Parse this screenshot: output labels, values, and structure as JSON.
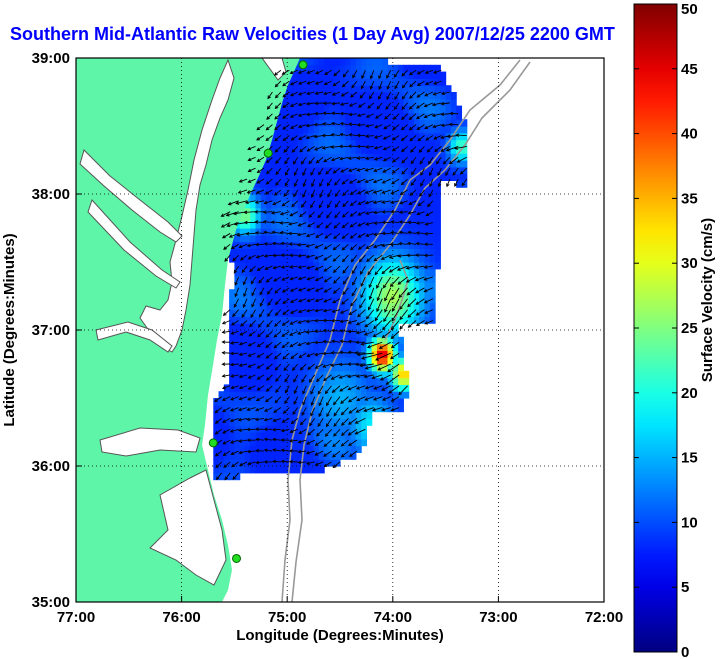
{
  "chart_data": {
    "type": "heatmap",
    "title": "Southern Mid-Atlantic Raw Velocities (1 Day Avg) 2007/12/25 2200 GMT",
    "xlabel": "Longitude (Degrees:Minutes)",
    "ylabel": "Latitude (Degrees:Minutes)",
    "xlim": [
      -77,
      -72
    ],
    "ylim": [
      35,
      39
    ],
    "x_ticks": [
      {
        "value": -77,
        "label": "77:00"
      },
      {
        "value": -76,
        "label": "76:00"
      },
      {
        "value": -75,
        "label": "75:00"
      },
      {
        "value": -74,
        "label": "74:00"
      },
      {
        "value": -73,
        "label": "73:00"
      },
      {
        "value": -72,
        "label": "72:00"
      }
    ],
    "y_ticks": [
      {
        "value": 35,
        "label": "35:00"
      },
      {
        "value": 36,
        "label": "36:00"
      },
      {
        "value": 37,
        "label": "37:00"
      },
      {
        "value": 38,
        "label": "38:00"
      },
      {
        "value": 39,
        "label": "39:00"
      }
    ],
    "grid": true,
    "grid_style": "dotted",
    "colorbar": {
      "label": "Surface Velocity (cm/s)",
      "min": 0,
      "max": 50,
      "ticks": [
        0,
        5,
        10,
        15,
        20,
        25,
        30,
        35,
        40,
        45,
        50
      ],
      "colormap": "jet"
    },
    "land_color": "#5ef5a8",
    "coverage_polygon_lonlat": [
      [
        -75.05,
        38.98
      ],
      [
        -74.3,
        38.98
      ],
      [
        -73.8,
        38.97
      ],
      [
        -73.55,
        38.95
      ],
      [
        -73.3,
        38.5
      ],
      [
        -73.3,
        38.05
      ],
      [
        -73.55,
        38.1
      ],
      [
        -73.55,
        37.45
      ],
      [
        -73.6,
        37.45
      ],
      [
        -73.6,
        37.05
      ],
      [
        -73.95,
        37.05
      ],
      [
        -73.85,
        36.6
      ],
      [
        -73.9,
        36.4
      ],
      [
        -74.2,
        36.4
      ],
      [
        -74.3,
        36.1
      ],
      [
        -74.65,
        35.97
      ],
      [
        -75.4,
        35.97
      ],
      [
        -75.45,
        35.92
      ],
      [
        -75.68,
        35.92
      ],
      [
        -75.68,
        36.5
      ],
      [
        -75.55,
        36.65
      ],
      [
        -75.55,
        37.15
      ],
      [
        -75.5,
        37.45
      ],
      [
        -75.6,
        37.55
      ],
      [
        -75.6,
        37.9
      ],
      [
        -75.4,
        38.05
      ],
      [
        -75.25,
        38.5
      ],
      [
        -75.05,
        38.98
      ]
    ],
    "speed_hotspots": [
      {
        "lon": -74.0,
        "lat": 37.25,
        "speed": 27,
        "radius_deg": 0.28
      },
      {
        "lon": -74.1,
        "lat": 36.82,
        "speed": 46,
        "radius_deg": 0.12
      },
      {
        "lon": -73.9,
        "lat": 36.68,
        "speed": 34,
        "radius_deg": 0.12
      },
      {
        "lon": -75.4,
        "lat": 37.85,
        "speed": 25,
        "radius_deg": 0.14
      },
      {
        "lon": -73.35,
        "lat": 38.35,
        "speed": 22,
        "radius_deg": 0.12
      },
      {
        "lon": -74.2,
        "lat": 36.3,
        "speed": 18,
        "radius_deg": 0.22
      },
      {
        "lon": -74.5,
        "lat": 36.5,
        "speed": 15,
        "radius_deg": 0.3
      }
    ],
    "background_speed": 8,
    "vector_field": {
      "grid_step_deg": 0.08,
      "dominant_direction": "southwest",
      "mean_bearing_deg": 240
    },
    "hf_radar_sites_lonlat": [
      [
        -74.85,
        38.95
      ],
      [
        -75.18,
        38.3
      ],
      [
        -75.7,
        36.17
      ],
      [
        -75.48,
        35.32
      ]
    ],
    "site_marker_color": "#22dd22"
  }
}
